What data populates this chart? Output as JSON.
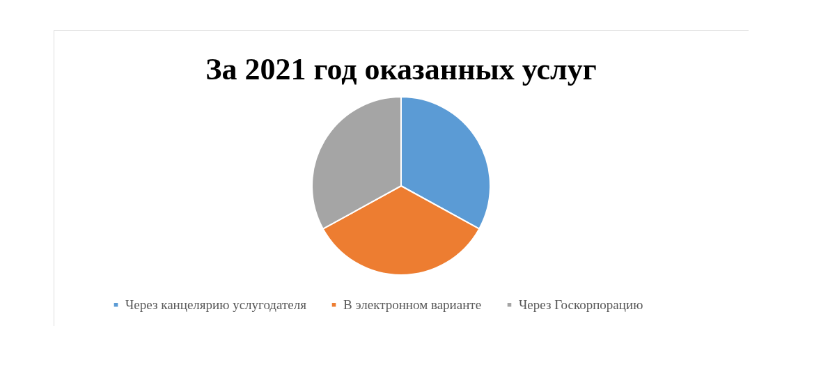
{
  "chart_data": {
    "type": "pie",
    "title": "За 2021 год оказанных услуг",
    "categories": [
      "Через канцелярию услугодателя",
      "В электронном варианте",
      "Через Госкорпорацию"
    ],
    "values": [
      33,
      34,
      33
    ],
    "colors": [
      "#5b9bd5",
      "#ed7d31",
      "#a5a5a5"
    ],
    "legend": "bottom"
  }
}
